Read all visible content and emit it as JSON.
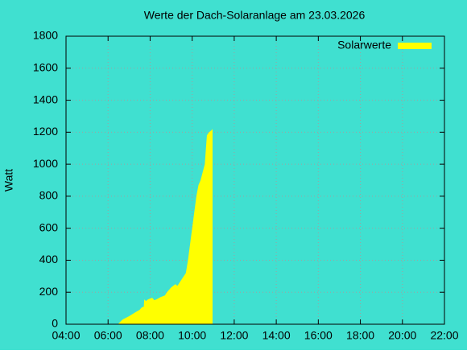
{
  "chart_data": {
    "type": "area",
    "title": "Werte der Dach-Solaranlage am 23.03.2026",
    "ylabel": "Watt",
    "x": [
      6.5,
      6.7,
      7.0,
      7.3,
      7.5,
      7.6,
      7.7,
      7.72,
      7.8,
      7.9,
      8.0,
      8.1,
      8.2,
      8.3,
      8.5,
      8.7,
      8.8,
      9.0,
      9.2,
      9.3,
      9.5,
      9.7,
      9.8,
      9.9,
      10.0,
      10.1,
      10.2,
      10.3,
      10.4,
      10.5,
      10.6,
      10.7,
      10.8,
      10.9,
      10.97
    ],
    "series": [
      {
        "name": "Solarwerte",
        "color": "#ffff00",
        "values": [
          5,
          30,
          50,
          75,
          90,
          105,
          110,
          155,
          145,
          155,
          160,
          165,
          150,
          155,
          170,
          180,
          200,
          230,
          250,
          240,
          280,
          320,
          400,
          500,
          600,
          700,
          800,
          870,
          900,
          950,
          1000,
          1180,
          1200,
          1210,
          1220
        ]
      }
    ],
    "xlim": [
      4,
      22
    ],
    "xticks": [
      {
        "value": 4,
        "label": "04:00"
      },
      {
        "value": 6,
        "label": "06:00"
      },
      {
        "value": 8,
        "label": "08:00"
      },
      {
        "value": 10,
        "label": "10:00"
      },
      {
        "value": 12,
        "label": "12:00"
      },
      {
        "value": 14,
        "label": "14:00"
      },
      {
        "value": 16,
        "label": "16:00"
      },
      {
        "value": 18,
        "label": "18:00"
      },
      {
        "value": 20,
        "label": "20:00"
      },
      {
        "value": 22,
        "label": "22:00"
      }
    ],
    "ylim": [
      0,
      1800
    ],
    "yticks": [
      0,
      200,
      400,
      600,
      800,
      1000,
      1200,
      1400,
      1600,
      1800
    ],
    "grid": true,
    "legend": "top-right",
    "background": "#40e0d0"
  }
}
